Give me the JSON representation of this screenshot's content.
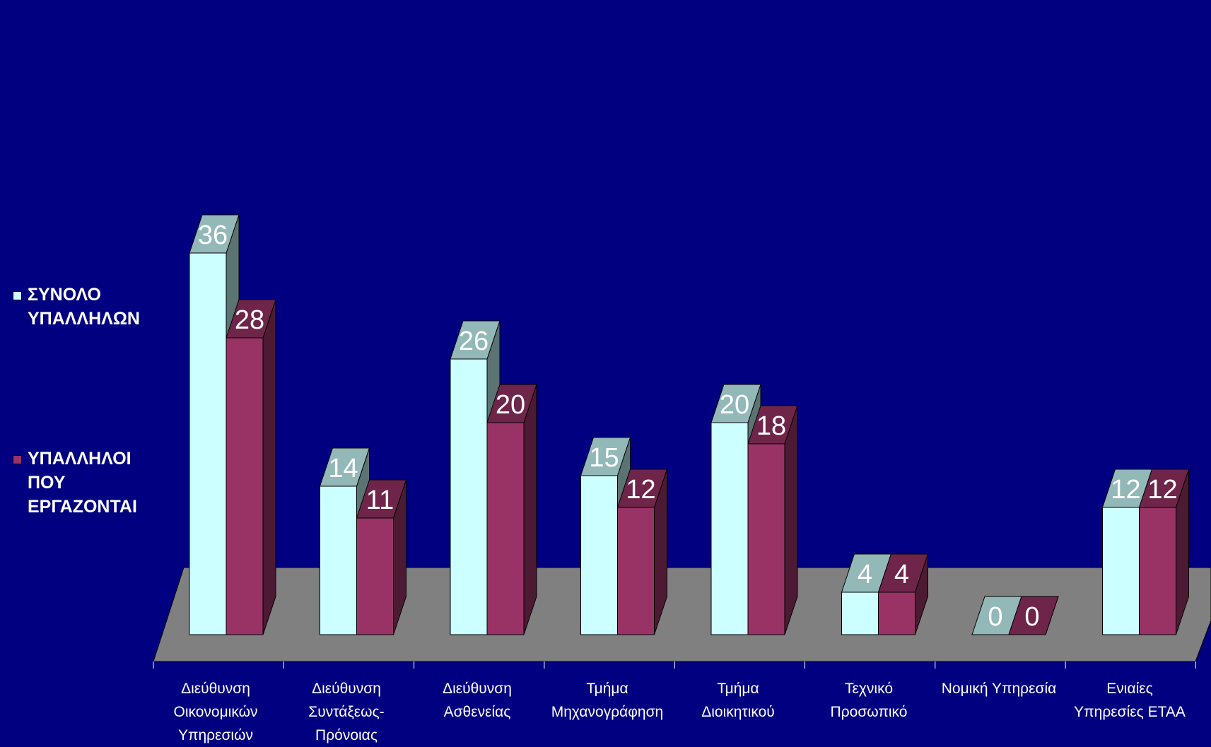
{
  "chart_data": {
    "type": "bar",
    "categories": [
      "Διεύθυνση\nΟικονομικών\nΥπηρεσιών",
      "Διεύθυνση\nΣυντάξεως-\nΠρόνοιας",
      "Διεύθυνση\nΑσθενείας",
      "Τμήμα\nΜηχανογράφηση",
      "Τμήμα\nΔιοικητικού",
      "Τεχνικό\nΠροσωπικό",
      "Νομική Υπηρεσία",
      "Ενιαίες\nΥπηρεσίες ΕΤΑΑ"
    ],
    "series": [
      {
        "name": "ΣΥΝΟΛΟ\nΥΠΑΛΛΗΛΩΝ",
        "values": [
          36,
          14,
          26,
          15,
          20,
          4,
          0,
          12
        ],
        "color": "#ccffff"
      },
      {
        "name": "ΥΠΑΛΛΗΛΟΙ\nΠΟΥ\nΕΡΓΑΖΟΝΤΑΙ",
        "values": [
          28,
          11,
          20,
          12,
          18,
          4,
          0,
          12
        ],
        "color": "#993366"
      }
    ],
    "legend": "left",
    "ylim": [
      0,
      36
    ],
    "colors": {
      "background": "#000080",
      "floor": "#808080",
      "data_label": "#ffffff"
    }
  }
}
